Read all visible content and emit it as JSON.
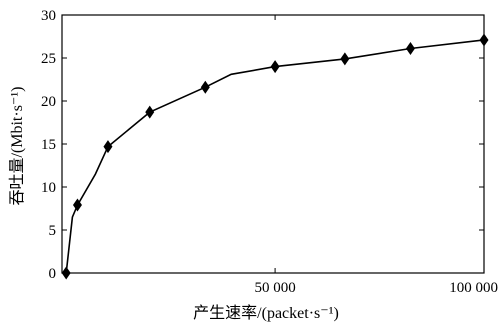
{
  "chart_data": {
    "type": "line",
    "title": "",
    "xlabel": "产生速率/(packet·s⁻¹)",
    "ylabel": "吞吐量/(Mbit·s⁻¹)",
    "xlim": [
      -1000,
      100000
    ],
    "ylim": [
      0,
      30
    ],
    "xticks": [
      50000,
      100000
    ],
    "xtick_labels": [
      "50 000",
      "100 000"
    ],
    "yticks": [
      0,
      5,
      10,
      15,
      20,
      25,
      30
    ],
    "ytick_labels": [
      "0",
      "5",
      "10",
      "15",
      "20",
      "25",
      "30"
    ],
    "grid": false,
    "legend": "none",
    "series": [
      {
        "marker": "diamond",
        "color": "#000000",
        "points": [
          {
            "x": 0,
            "y": 0,
            "marker": true
          },
          {
            "x": 1500,
            "y": 6.5,
            "marker": false
          },
          {
            "x": 2700,
            "y": 7.9,
            "marker": true
          },
          {
            "x": 7000,
            "y": 11.5,
            "marker": false
          },
          {
            "x": 10000,
            "y": 14.7,
            "marker": true
          },
          {
            "x": 20000,
            "y": 18.7,
            "marker": true
          },
          {
            "x": 33300,
            "y": 21.6,
            "marker": true
          },
          {
            "x": 39500,
            "y": 23.1,
            "marker": false
          },
          {
            "x": 50000,
            "y": 24.0,
            "marker": true
          },
          {
            "x": 66700,
            "y": 24.9,
            "marker": true
          },
          {
            "x": 82400,
            "y": 26.1,
            "marker": true
          },
          {
            "x": 100000,
            "y": 27.1,
            "marker": true
          }
        ]
      }
    ]
  }
}
